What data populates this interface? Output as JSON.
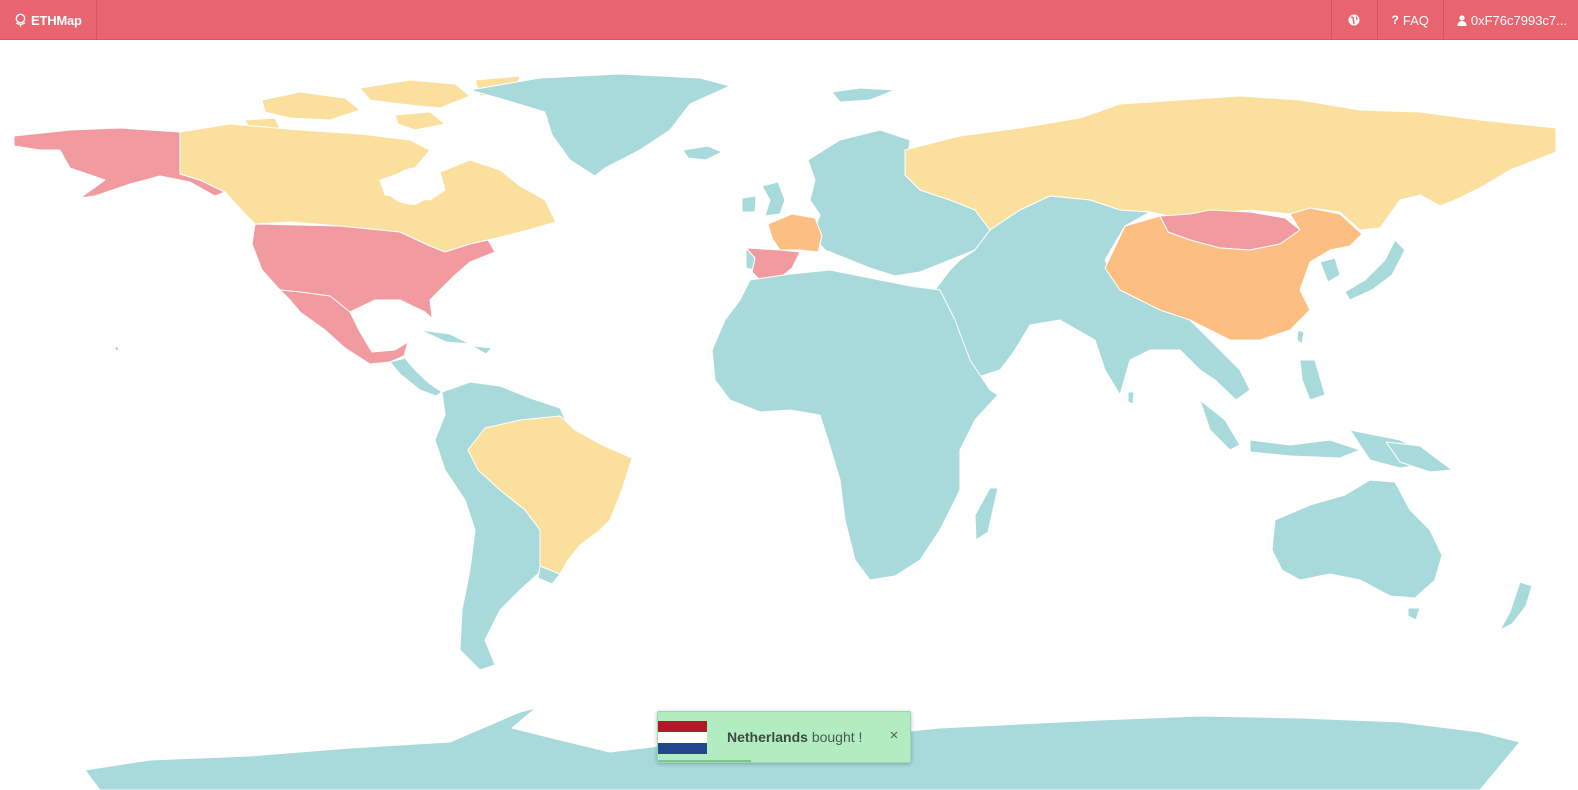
{
  "navbar": {
    "brand": "ETHMap",
    "brand_icon": "globe-pin-icon",
    "globe_icon": "globe-icon",
    "faq_label": "FAQ",
    "faq_icon": "question-icon",
    "account_label": "0xF76c7993c7...",
    "account_icon": "user-icon"
  },
  "colors": {
    "navbar": "#e8646e",
    "available": "#a8dadc",
    "owned_yellow": "#fbdf9d",
    "owned_orange": "#fdbe82",
    "owned_red": "#f19ba0"
  },
  "map": {
    "countries": [
      {
        "name": "Alaska",
        "status": "owned_red"
      },
      {
        "name": "Canada",
        "status": "owned_yellow"
      },
      {
        "name": "Greenland",
        "status": "available"
      },
      {
        "name": "United States",
        "status": "owned_red"
      },
      {
        "name": "Mexico",
        "status": "owned_red"
      },
      {
        "name": "Brazil",
        "status": "owned_yellow"
      },
      {
        "name": "France",
        "status": "owned_orange"
      },
      {
        "name": "Spain",
        "status": "owned_red"
      },
      {
        "name": "Russia",
        "status": "owned_yellow"
      },
      {
        "name": "Mongolia",
        "status": "owned_red"
      },
      {
        "name": "China",
        "status": "owned_orange"
      }
    ]
  },
  "toast": {
    "country": "Netherlands",
    "message": "bought !",
    "close_label": "×",
    "flag_colors": [
      "#ae1c28",
      "#ffffff",
      "#21468b"
    ],
    "progress": 0.37
  }
}
